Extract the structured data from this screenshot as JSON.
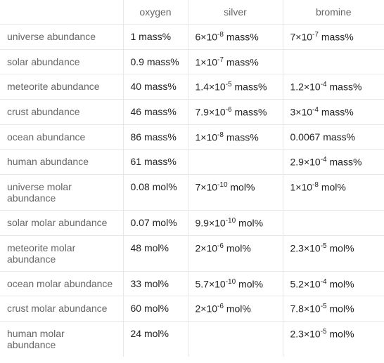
{
  "table": {
    "columns": [
      "",
      "oxygen",
      "silver",
      "bromine"
    ],
    "rows": [
      {
        "label": "universe abundance",
        "oxygen": "1 mass%",
        "silver": "6×10⁻⁸ mass%",
        "bromine": "7×10⁻⁷ mass%"
      },
      {
        "label": "solar abundance",
        "oxygen": "0.9 mass%",
        "silver": "1×10⁻⁷ mass%",
        "bromine": ""
      },
      {
        "label": "meteorite abundance",
        "oxygen": "40 mass%",
        "silver": "1.4×10⁻⁵ mass%",
        "bromine": "1.2×10⁻⁴ mass%"
      },
      {
        "label": "crust abundance",
        "oxygen": "46 mass%",
        "silver": "7.9×10⁻⁶ mass%",
        "bromine": "3×10⁻⁴ mass%"
      },
      {
        "label": "ocean abundance",
        "oxygen": "86 mass%",
        "silver": "1×10⁻⁸ mass%",
        "bromine": "0.0067 mass%"
      },
      {
        "label": "human abundance",
        "oxygen": "61 mass%",
        "silver": "",
        "bromine": "2.9×10⁻⁴ mass%"
      },
      {
        "label": "universe molar abundance",
        "oxygen": "0.08 mol%",
        "silver": "7×10⁻¹⁰ mol%",
        "bromine": "1×10⁻⁸ mol%"
      },
      {
        "label": "solar molar abundance",
        "oxygen": "0.07 mol%",
        "silver": "9.9×10⁻¹⁰ mol%",
        "bromine": ""
      },
      {
        "label": "meteorite molar abundance",
        "oxygen": "48 mol%",
        "silver": "2×10⁻⁶ mol%",
        "bromine": "2.3×10⁻⁵ mol%"
      },
      {
        "label": "ocean molar abundance",
        "oxygen": "33 mol%",
        "silver": "5.7×10⁻¹⁰ mol%",
        "bromine": "5.2×10⁻⁴ mol%"
      },
      {
        "label": "crust molar abundance",
        "oxygen": "60 mol%",
        "silver": "2×10⁻⁶ mol%",
        "bromine": "7.8×10⁻⁵ mol%"
      },
      {
        "label": "human molar abundance",
        "oxygen": "24 mol%",
        "silver": "",
        "bromine": "2.3×10⁻⁵ mol%"
      }
    ],
    "colors": {
      "background": "#ffffff",
      "border": "#e8e8e8",
      "header_text": "#666666",
      "label_text": "#666666",
      "value_text": "#222222"
    },
    "fontsize": 14
  }
}
